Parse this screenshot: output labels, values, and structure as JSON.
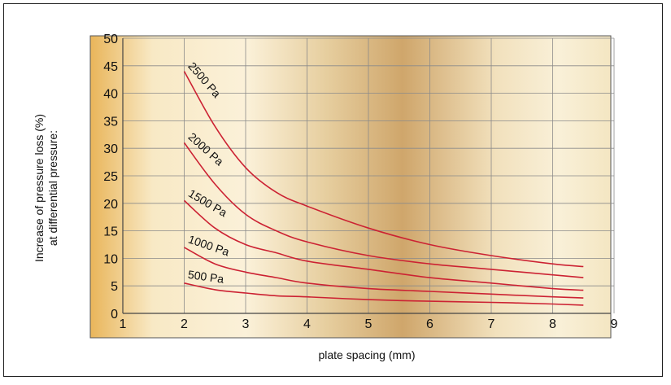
{
  "chart_data": {
    "type": "line",
    "title": "",
    "xlabel": "plate spacing (mm)",
    "ylabel_lines": [
      "Increase of pressure loss (%)",
      "at differential pressure:"
    ],
    "xlim": [
      1,
      9
    ],
    "ylim": [
      0,
      50
    ],
    "x_ticks": [
      1,
      2,
      3,
      4,
      5,
      6,
      7,
      8,
      9
    ],
    "y_ticks": [
      0,
      5,
      10,
      15,
      20,
      25,
      30,
      35,
      40,
      45,
      50
    ],
    "grid": true,
    "legend": "inline labels on curves",
    "line_color": "#cc2233",
    "series": [
      {
        "name": "2500 Pa",
        "x": [
          2,
          2.5,
          3,
          3.5,
          4,
          5,
          6,
          7,
          8,
          8.5
        ],
        "values": [
          44,
          34,
          26.5,
          22,
          19.5,
          15.5,
          12.5,
          10.5,
          9,
          8.5
        ]
      },
      {
        "name": "2000 Pa",
        "x": [
          2,
          2.5,
          3,
          3.5,
          4,
          5,
          6,
          7,
          8,
          8.5
        ],
        "values": [
          31,
          23.5,
          18,
          15,
          13,
          10.5,
          9,
          8,
          7,
          6.5
        ]
      },
      {
        "name": "1500 Pa",
        "x": [
          2,
          2.5,
          3,
          3.5,
          4,
          5,
          6,
          7,
          8,
          8.5
        ],
        "values": [
          20.5,
          15.5,
          12.5,
          11,
          9.5,
          8,
          6.5,
          5.5,
          4.5,
          4.2
        ]
      },
      {
        "name": "1000 Pa",
        "x": [
          2,
          2.5,
          3,
          3.5,
          4,
          5,
          6,
          7,
          8,
          8.5
        ],
        "values": [
          12,
          9,
          7.5,
          6.5,
          5.5,
          4.5,
          4,
          3.5,
          3,
          2.8
        ]
      },
      {
        "name": "500 Pa",
        "x": [
          2,
          2.5,
          3,
          3.5,
          4,
          5,
          6,
          7,
          8,
          8.5
        ],
        "values": [
          5.5,
          4.3,
          3.7,
          3.2,
          3,
          2.5,
          2.2,
          2,
          1.7,
          1.5
        ]
      }
    ]
  }
}
